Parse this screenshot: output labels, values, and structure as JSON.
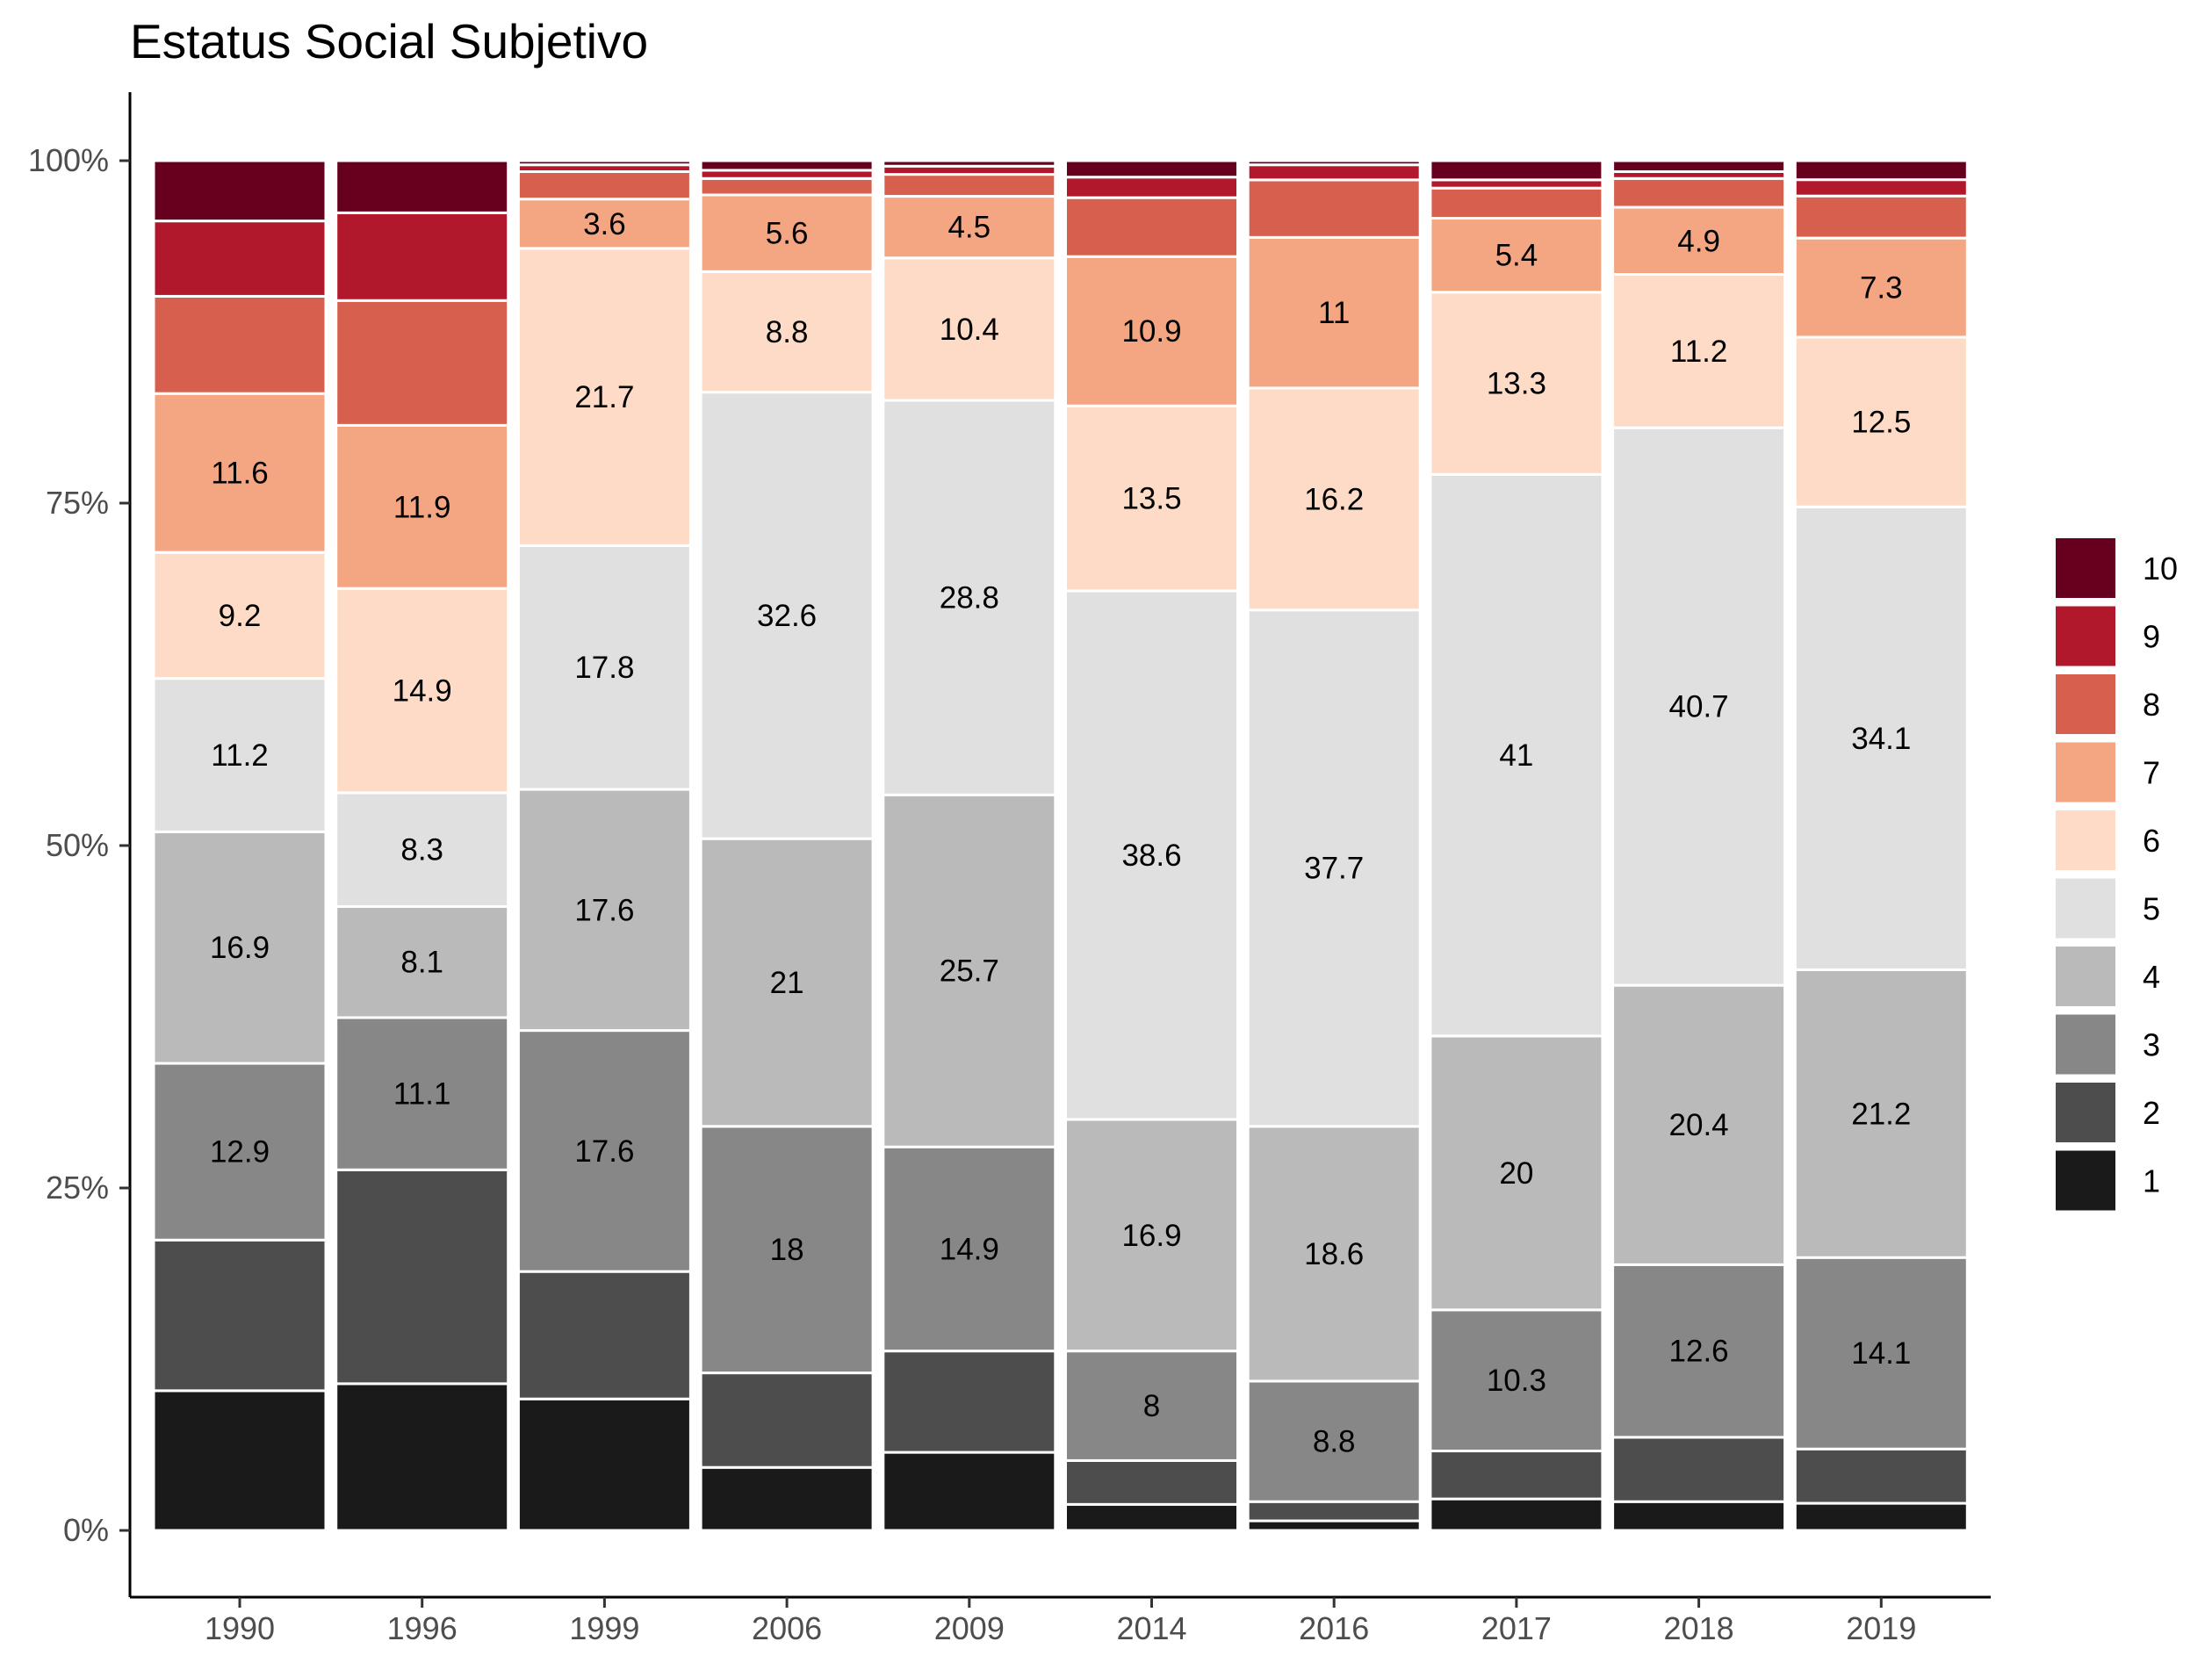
{
  "chart_data": {
    "type": "bar",
    "stacked": "percent",
    "title": "Estatus Social Subjetivo",
    "xlabel": "",
    "ylabel": "",
    "ylim": [
      0,
      1
    ],
    "y_ticks": [
      "0%",
      "25%",
      "50%",
      "75%",
      "100%"
    ],
    "y_tick_values": [
      0,
      0.25,
      0.5,
      0.75,
      1.0
    ],
    "grid": false,
    "legend_position": "right",
    "categories": [
      "1990",
      "1996",
      "1999",
      "2006",
      "2009",
      "2014",
      "2016",
      "2017",
      "2018",
      "2019"
    ],
    "series": [
      {
        "name": "1",
        "color": "#1a1a1a",
        "values": [
          10.2,
          10.7,
          9.6,
          4.6,
          5.7,
          1.9,
          0.7,
          2.3,
          2.1,
          2.0
        ]
      },
      {
        "name": "2",
        "color": "#4d4d4d",
        "values": [
          11.0,
          15.6,
          9.3,
          6.9,
          7.4,
          3.2,
          1.4,
          3.5,
          4.7,
          4.0
        ]
      },
      {
        "name": "3",
        "color": "#878787",
        "values": [
          12.9,
          11.1,
          17.6,
          18.0,
          14.9,
          8.0,
          8.8,
          10.3,
          12.6,
          14.1
        ]
      },
      {
        "name": "4",
        "color": "#bababa",
        "values": [
          16.9,
          8.1,
          17.6,
          21.0,
          25.7,
          16.9,
          18.6,
          20.0,
          20.4,
          21.2
        ]
      },
      {
        "name": "5",
        "color": "#e0e0e0",
        "values": [
          11.2,
          8.3,
          17.8,
          32.6,
          28.8,
          38.6,
          37.7,
          41.0,
          40.7,
          34.1
        ]
      },
      {
        "name": "6",
        "color": "#fddbc7",
        "values": [
          9.2,
          14.9,
          21.7,
          8.8,
          10.4,
          13.5,
          16.2,
          13.3,
          11.2,
          12.5
        ]
      },
      {
        "name": "7",
        "color": "#f4a582",
        "values": [
          11.6,
          11.9,
          3.6,
          5.6,
          4.5,
          10.9,
          11.0,
          5.4,
          4.9,
          7.3
        ]
      },
      {
        "name": "8",
        "color": "#d6604d",
        "values": [
          7.1,
          9.1,
          2.0,
          1.2,
          1.6,
          4.3,
          4.2,
          2.2,
          2.1,
          3.1
        ]
      },
      {
        "name": "9",
        "color": "#b2182b",
        "values": [
          5.5,
          6.4,
          0.5,
          0.6,
          0.6,
          1.5,
          1.1,
          0.6,
          0.5,
          1.2
        ]
      },
      {
        "name": "10",
        "color": "#67001f",
        "values": [
          4.4,
          3.8,
          0.3,
          0.7,
          0.4,
          1.2,
          0.3,
          1.4,
          0.8,
          1.4
        ]
      }
    ],
    "data_labels": [
      [
        "",
        "",
        "12.9",
        "16.9",
        "11.2",
        "9.2",
        "11.6",
        "",
        "",
        ""
      ],
      [
        "",
        "",
        "11.1",
        "8.1",
        "8.3",
        "14.9",
        "11.9",
        "",
        "",
        ""
      ],
      [
        "",
        "",
        "17.6",
        "17.6",
        "17.8",
        "21.7",
        "3.6",
        "",
        "",
        ""
      ],
      [
        "",
        "",
        "18",
        "21",
        "32.6",
        "8.8",
        "5.6",
        "",
        "",
        ""
      ],
      [
        "",
        "",
        "14.9",
        "25.7",
        "28.8",
        "10.4",
        "4.5",
        "",
        "",
        ""
      ],
      [
        "",
        "",
        "8",
        "16.9",
        "38.6",
        "13.5",
        "10.9",
        "",
        "",
        ""
      ],
      [
        "",
        "",
        "8.8",
        "18.6",
        "37.7",
        "16.2",
        "11",
        "",
        "",
        ""
      ],
      [
        "",
        "",
        "10.3",
        "20",
        "41",
        "13.3",
        "5.4",
        "",
        "",
        ""
      ],
      [
        "",
        "",
        "12.6",
        "20.4",
        "40.7",
        "11.2",
        "4.9",
        "",
        "",
        ""
      ],
      [
        "",
        "",
        "14.1",
        "21.2",
        "34.1",
        "12.5",
        "7.3",
        "",
        "",
        ""
      ]
    ]
  }
}
